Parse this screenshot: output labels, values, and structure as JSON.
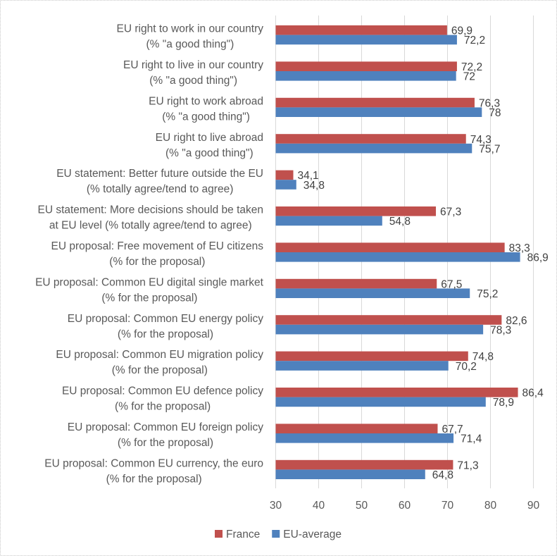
{
  "chart_data": {
    "type": "bar",
    "orientation": "horizontal",
    "title": "",
    "xlabel": "",
    "ylabel": "",
    "xlim": [
      30,
      90
    ],
    "x_ticks": [
      "30",
      "40",
      "50",
      "60",
      "70",
      "80",
      "90"
    ],
    "grid": "vertical",
    "legend": "bottom",
    "categories": [
      [
        "EU right to work in our country",
        "(% \"a good thing\")"
      ],
      [
        "EU right to live in our country",
        "(% \"a good thing\")"
      ],
      [
        "EU right to work abroad",
        "(% \"a good thing\")"
      ],
      [
        "EU right to live abroad",
        "(% \"a good thing\")"
      ],
      [
        "EU statement: Better future outside the EU",
        "(% totally agree/tend to agree)"
      ],
      [
        "EU statement: More decisions should be taken",
        "at EU level   (% totally agree/tend to agree)"
      ],
      [
        "EU proposal: Free movement of EU citizens",
        "(% for the proposal)"
      ],
      [
        "EU proposal: Common EU digital single market",
        "(% for the proposal)"
      ],
      [
        "EU proposal: Common EU energy policy",
        "(% for the proposal)"
      ],
      [
        "EU proposal: Common EU migration policy",
        "(% for the proposal)"
      ],
      [
        "EU proposal: Common EU defence policy",
        "(% for the proposal)"
      ],
      [
        "EU proposal: Common EU foreign policy",
        "(% for the proposal)"
      ],
      [
        "EU proposal: Common EU currency, the euro",
        "(% for the proposal)"
      ]
    ],
    "series": [
      {
        "name": "France",
        "color": "#c0504d",
        "values": [
          69.9,
          72.2,
          76.3,
          74.3,
          34.1,
          67.3,
          83.3,
          67.5,
          82.6,
          74.8,
          86.4,
          67.7,
          71.3
        ],
        "labels": [
          "69,9",
          "72,2",
          "76,3",
          "74,3",
          "34,1",
          "67,3",
          "83,3",
          "67,5",
          "82,6",
          "74,8",
          "86,4",
          "67,7",
          "71,3"
        ]
      },
      {
        "name": "EU-average",
        "color": "#4f81bd",
        "values": [
          72.2,
          72,
          78,
          75.7,
          34.8,
          54.8,
          86.9,
          75.2,
          78.3,
          70.2,
          78.9,
          71.4,
          64.8
        ],
        "labels": [
          "72,2",
          "72",
          "78",
          "75,7",
          "34,8",
          "54,8",
          "86,9",
          "75,2",
          "78,3",
          "70,2",
          "78,9",
          "71,4",
          "64,8"
        ]
      }
    ]
  }
}
